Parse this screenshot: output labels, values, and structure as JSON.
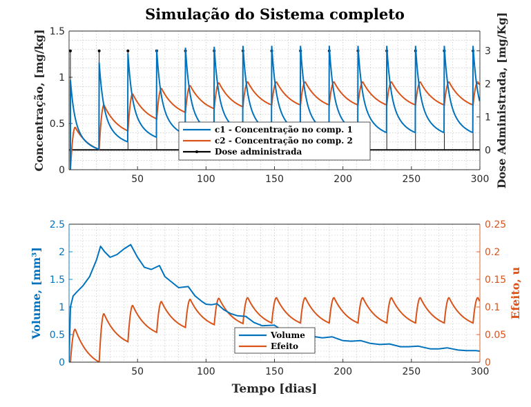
{
  "figure": {
    "title": "Simulação do Sistema completo"
  },
  "chart_data": [
    {
      "type": "line",
      "title": "Simulação do Sistema completo",
      "xlabel": "",
      "ylabel": "Concentração, [mg/kg]",
      "ylabel_right": "Dose Administrada, [mg/Kg]",
      "xlim": [
        0,
        300
      ],
      "ylim": [
        0,
        1.5
      ],
      "ylim_right": [
        -0.6,
        3.6
      ],
      "xticks": [
        50,
        100,
        150,
        200,
        250,
        300
      ],
      "yticks": [
        0,
        0.5,
        1,
        1.5
      ],
      "yticks_right": [
        0,
        1,
        2,
        3
      ],
      "xtick_labels": [
        "50",
        "100",
        "150",
        "200",
        "250",
        "300"
      ],
      "ytick_labels": [
        "0",
        "0.5",
        "1",
        "1.5"
      ],
      "ytick_labels_right": [
        "0",
        "1",
        "2",
        "3"
      ],
      "grid": true,
      "legend_position": "bottom-center",
      "dose": {
        "interval_days": 21,
        "first_day": 1,
        "amount": 3
      },
      "series": [
        {
          "name": "c1 - Concentração no comp. 1",
          "color": "#0072BD",
          "axis": "left",
          "peaks": [
            0.97,
            1.16,
            1.26,
            1.3,
            1.32,
            1.33,
            1.34,
            1.34,
            1.34,
            1.34,
            1.34,
            1.34,
            1.34,
            1.34,
            1.34
          ],
          "troughs": [
            0.22,
            0.3,
            0.35,
            0.38,
            0.39,
            0.4,
            0.4,
            0.4,
            0.4,
            0.4,
            0.4,
            0.4,
            0.4,
            0.4,
            0.42
          ]
        },
        {
          "name": "c2 - Concentração no comp. 2",
          "color": "#D95319",
          "axis": "left",
          "peaks": [
            0.46,
            0.7,
            0.82,
            0.88,
            0.91,
            0.94,
            0.95,
            0.95,
            0.95,
            0.95,
            0.95,
            0.95,
            0.95,
            0.95,
            0.95
          ],
          "troughs": [
            0.22,
            0.42,
            0.55,
            0.62,
            0.66,
            0.68,
            0.7,
            0.7,
            0.7,
            0.7,
            0.7,
            0.7,
            0.7,
            0.7,
            0.72
          ]
        },
        {
          "name": "Dose administrada",
          "color": "#000000",
          "axis": "right",
          "marker": "dot"
        }
      ]
    },
    {
      "type": "line",
      "xlabel": "Tempo [dias]",
      "ylabel": "Volume, [mm³]",
      "ylabel_right": "Efeito, u",
      "xlim": [
        0,
        300
      ],
      "ylim": [
        0,
        2.5
      ],
      "ylim_right": [
        0,
        0.25
      ],
      "xticks": [
        50,
        100,
        150,
        200,
        250,
        300
      ],
      "yticks": [
        0,
        0.5,
        1,
        1.5,
        2,
        2.5
      ],
      "yticks_right": [
        0,
        0.05,
        0.1,
        0.15,
        0.2,
        0.25
      ],
      "xtick_labels": [
        "50",
        "100",
        "150",
        "200",
        "250",
        "300"
      ],
      "ytick_labels": [
        "0",
        "0.5",
        "1",
        "1.5",
        "2",
        "2.5"
      ],
      "ytick_labels_right": [
        "0",
        "0.05",
        "0.1",
        "0.15",
        "0.2",
        "0.25"
      ],
      "grid": true,
      "legend_position": "bottom-center",
      "series": [
        {
          "name": "Volume",
          "color": "#0072BD",
          "axis": "left",
          "x": [
            1,
            3,
            6,
            10,
            15,
            20,
            23,
            26,
            30,
            35,
            40,
            45,
            50,
            55,
            60,
            66,
            70,
            75,
            80,
            87,
            92,
            97,
            100,
            104,
            108,
            113,
            118,
            123,
            129,
            135,
            141,
            150,
            156,
            163,
            170,
            177,
            185,
            192,
            200,
            206,
            213,
            220,
            227,
            234,
            242,
            248,
            255,
            264,
            270,
            276,
            284,
            290,
            297,
            300
          ],
          "y": [
            1.0,
            1.2,
            1.28,
            1.38,
            1.55,
            1.85,
            2.1,
            2.0,
            1.9,
            1.95,
            2.05,
            2.13,
            1.9,
            1.72,
            1.68,
            1.75,
            1.55,
            1.45,
            1.35,
            1.37,
            1.2,
            1.1,
            1.05,
            1.04,
            1.06,
            0.95,
            0.88,
            0.84,
            0.83,
            0.72,
            0.66,
            0.67,
            0.57,
            0.52,
            0.52,
            0.47,
            0.44,
            0.46,
            0.39,
            0.38,
            0.39,
            0.34,
            0.32,
            0.33,
            0.28,
            0.28,
            0.29,
            0.24,
            0.24,
            0.26,
            0.22,
            0.21,
            0.21,
            0.2
          ]
        },
        {
          "name": "Efeito",
          "color": "#D95319",
          "axis": "right",
          "peaks": [
            0.06,
            0.088,
            0.103,
            0.11,
            0.114,
            0.116,
            0.117,
            0.117,
            0.117,
            0.117,
            0.117,
            0.117,
            0.117,
            0.117,
            0.117
          ],
          "troughs": [
            0.0,
            0.037,
            0.054,
            0.063,
            0.068,
            0.07,
            0.071,
            0.071,
            0.071,
            0.071,
            0.071,
            0.071,
            0.071,
            0.071,
            0.071
          ]
        }
      ]
    }
  ]
}
